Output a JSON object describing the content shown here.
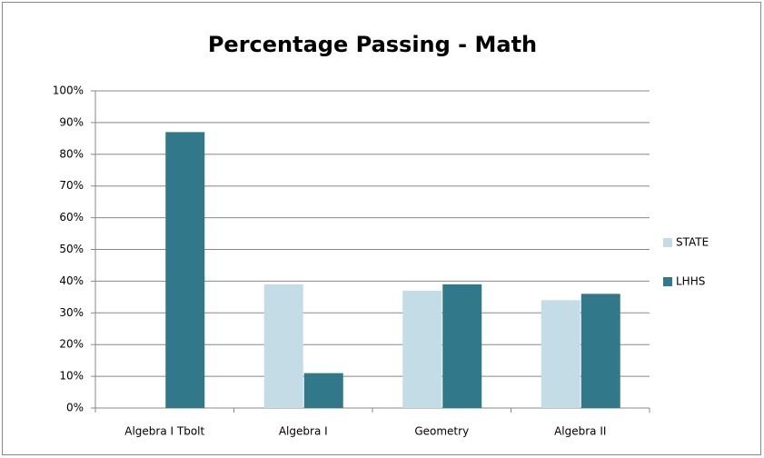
{
  "chart_data": {
    "type": "bar",
    "title": "Percentage Passing - Math",
    "categories": [
      "Algebra I Tbolt",
      "Algebra I",
      "Geometry",
      "Algebra II"
    ],
    "series": [
      {
        "name": "STATE",
        "color": "#c3dce6",
        "values": [
          null,
          39,
          37,
          34
        ]
      },
      {
        "name": "LHHS",
        "color": "#31788b",
        "values": [
          87,
          11,
          39,
          36
        ]
      }
    ],
    "ylim": [
      0,
      100
    ],
    "yticks": [
      {
        "value": 0,
        "label": "0%"
      },
      {
        "value": 10,
        "label": "10%"
      },
      {
        "value": 20,
        "label": "20%"
      },
      {
        "value": 30,
        "label": "30%"
      },
      {
        "value": 40,
        "label": "40%"
      },
      {
        "value": 50,
        "label": "50%"
      },
      {
        "value": 60,
        "label": "60%"
      },
      {
        "value": 70,
        "label": "70%"
      },
      {
        "value": 80,
        "label": "80%"
      },
      {
        "value": 90,
        "label": "90%"
      },
      {
        "value": 100,
        "label": "100%"
      }
    ],
    "grid": true,
    "legend": "right"
  }
}
